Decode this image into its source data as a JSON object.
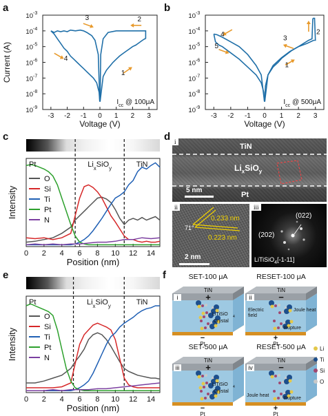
{
  "chart_data": [
    {
      "panel": "a",
      "type": "line",
      "xlabel": "Voltage (V)",
      "ylabel": "Current (A)",
      "xlim": [
        -3.5,
        3.5
      ],
      "xticks": [
        -3,
        -2,
        -1,
        0,
        1,
        2,
        3
      ],
      "ylim": [
        -9,
        -3
      ],
      "yscale": "log",
      "yticklabels": [
        "10",
        "10",
        "10",
        "10",
        "10",
        "10",
        "10"
      ],
      "ytickexp": [
        "-9",
        "-8",
        "-7",
        "-6",
        "-5",
        "-4",
        "-3"
      ],
      "annotation_main": "I",
      "annotation_sub": "cc",
      "annotation_rest": " @ 100μA",
      "arrows": [
        "1",
        "2",
        "3",
        "4"
      ],
      "series": [
        {
          "x": [
            0.01,
            0.2,
            0.4,
            0.6,
            0.8,
            1.0,
            1.2,
            1.4,
            1.6,
            1.8,
            2.0,
            2.2,
            2.4,
            2.6,
            2.75,
            2.8
          ],
          "y": [
            -8.5,
            -6.9,
            -6.5,
            -6.25,
            -6.0,
            -5.8,
            -5.6,
            -5.45,
            -5.3,
            -5.15,
            -5.0,
            -4.9,
            -4.75,
            -4.6,
            -4.5,
            -4.5
          ]
        },
        {
          "x": [
            2.8,
            2.8,
            2.5,
            2.0,
            1.5,
            1.0,
            0.5,
            0.2,
            0.05,
            0.01
          ],
          "y": [
            -4.5,
            -4.0,
            -4.0,
            -4.0,
            -4.0,
            -4.0,
            -4.1,
            -4.5,
            -5.5,
            -8.5
          ]
        },
        {
          "x": [
            -0.01,
            -0.1,
            -0.3,
            -0.5,
            -0.8,
            -1.0,
            -1.2,
            -1.5,
            -1.8,
            -2.0,
            -2.2,
            -2.4,
            -2.6,
            -2.8,
            -3.0
          ],
          "y": [
            -8.5,
            -5.5,
            -4.6,
            -4.3,
            -4.1,
            -4.0,
            -3.95,
            -4.0,
            -3.95,
            -4.05,
            -4.0,
            -4.05,
            -4.0,
            -4.1,
            -4.0
          ]
        },
        {
          "x": [
            -3.0,
            -2.8,
            -2.6,
            -2.4,
            -2.2,
            -2.0,
            -1.8,
            -1.6,
            -1.4,
            -1.2,
            -1.0,
            -0.8,
            -0.6,
            -0.4,
            -0.2,
            -0.05,
            -0.01
          ],
          "y": [
            -4.0,
            -4.2,
            -4.5,
            -4.8,
            -5.1,
            -5.3,
            -5.6,
            -5.8,
            -6.0,
            -6.2,
            -6.4,
            -6.6,
            -6.8,
            -7.0,
            -7.3,
            -7.9,
            -8.5
          ]
        }
      ]
    },
    {
      "panel": "b",
      "type": "line",
      "xlabel": "Voltage (V)",
      "ylabel": "",
      "xlim": [
        -3.5,
        3.5
      ],
      "xticks": [
        -3,
        -2,
        -1,
        0,
        1,
        2,
        3
      ],
      "ylim": [
        -9,
        -3
      ],
      "yscale": "log",
      "yticklabels": [
        "10",
        "10",
        "10",
        "10",
        "10",
        "10",
        "10"
      ],
      "ytickexp": [
        "-9",
        "-8",
        "-7",
        "-6",
        "-5",
        "-4",
        "-3"
      ],
      "annotation_main": "I",
      "annotation_sub": "cc",
      "annotation_rest": " @ 500μA",
      "arrows": [
        "1",
        "2",
        "3",
        "4",
        "5"
      ],
      "series": [
        {
          "x": [
            0.01,
            0.2,
            0.5,
            0.8,
            1.0,
            1.3,
            1.6,
            2.0,
            2.3,
            2.6,
            2.8,
            2.85
          ],
          "y": [
            -8.5,
            -6.8,
            -6.3,
            -6.0,
            -5.75,
            -5.5,
            -5.25,
            -5.0,
            -4.8,
            -4.6,
            -4.5,
            -3.2
          ]
        },
        {
          "x": [
            2.85,
            2.95,
            3.0,
            2.9
          ],
          "y": [
            -3.2,
            -3.2,
            -4.6,
            -4.6
          ]
        },
        {
          "x": [
            2.9,
            2.5,
            2.0,
            1.5,
            1.0,
            0.5,
            0.2,
            0.05,
            0.01
          ],
          "y": [
            -4.6,
            -4.8,
            -5.0,
            -5.3,
            -5.7,
            -6.2,
            -6.8,
            -7.5,
            -8.5
          ]
        },
        {
          "x": [
            -0.01,
            -0.2,
            -0.5,
            -1.0,
            -1.5,
            -2.0,
            -2.5,
            -2.8,
            -3.0
          ],
          "y": [
            -8.5,
            -6.8,
            -6.2,
            -5.5,
            -5.0,
            -4.7,
            -4.4,
            -4.25,
            -4.2
          ]
        },
        {
          "x": [
            -3.0,
            -2.9,
            -2.7,
            -2.5,
            -2.0,
            -1.5,
            -1.0,
            -0.5,
            -0.2,
            -0.05,
            -0.01
          ],
          "y": [
            -4.2,
            -4.7,
            -4.9,
            -5.0,
            -5.4,
            -5.8,
            -6.3,
            -6.8,
            -7.3,
            -7.9,
            -8.5
          ]
        }
      ]
    },
    {
      "panel": "c",
      "type": "line",
      "xlabel": "Position (nm)",
      "ylabel": "Intensity",
      "xlim": [
        0,
        15
      ],
      "xticks": [
        0,
        2,
        4,
        6,
        8,
        10,
        12,
        14
      ],
      "ylim": [
        0,
        1
      ],
      "regions": [
        "Pt",
        "Li",
        "x",
        "SiO",
        "y",
        "TiN"
      ],
      "vlines": [
        5.5,
        11.0
      ],
      "series": [
        {
          "name": "O",
          "color": "#555555",
          "x": [
            0,
            1,
            2,
            3,
            4,
            5,
            5.5,
            6,
            6.5,
            7,
            7.5,
            8,
            8.5,
            9,
            9.5,
            10,
            10.5,
            11,
            11.5,
            12,
            12.5,
            13,
            13.5,
            14,
            14.5,
            15
          ],
          "y": [
            0.05,
            0.06,
            0.08,
            0.1,
            0.15,
            0.22,
            0.3,
            0.35,
            0.4,
            0.45,
            0.5,
            0.55,
            0.56,
            0.54,
            0.5,
            0.42,
            0.32,
            0.25,
            0.3,
            0.32,
            0.3,
            0.33,
            0.3,
            0.32,
            0.34,
            0.3
          ]
        },
        {
          "name": "Si",
          "color": "#d62728",
          "x": [
            0,
            1,
            2,
            3,
            4,
            5,
            5.5,
            6,
            6.5,
            7,
            7.5,
            8,
            8.5,
            9,
            9.5,
            10,
            10.5,
            11,
            11.5,
            12,
            12.5,
            13,
            13.5,
            14,
            14.5,
            15
          ],
          "y": [
            0.1,
            0.09,
            0.1,
            0.08,
            0.1,
            0.15,
            0.35,
            0.55,
            0.68,
            0.7,
            0.67,
            0.62,
            0.55,
            0.45,
            0.35,
            0.28,
            0.2,
            0.12,
            0.08,
            0.08,
            0.06,
            0.05,
            0.06,
            0.05,
            0.05,
            0.06
          ]
        },
        {
          "name": "Ti",
          "color": "#1f5fb4",
          "x": [
            0,
            1,
            2,
            3,
            4,
            5,
            5.5,
            6,
            6.5,
            7,
            7.5,
            8,
            8.5,
            9,
            9.5,
            10,
            10.5,
            11,
            11.5,
            12,
            12.5,
            13,
            13.5,
            14,
            14.5,
            15
          ],
          "y": [
            0.02,
            0.02,
            0.02,
            0.02,
            0.02,
            0.02,
            0.03,
            0.05,
            0.08,
            0.12,
            0.18,
            0.25,
            0.32,
            0.4,
            0.48,
            0.55,
            0.58,
            0.62,
            0.7,
            0.75,
            0.85,
            0.9,
            0.88,
            0.92,
            0.95,
            0.9
          ]
        },
        {
          "name": "Pt",
          "color": "#2ca02c",
          "x": [
            0,
            0.5,
            1,
            1.5,
            2,
            2.5,
            3,
            3.5,
            4,
            4.5,
            5,
            5.5,
            6,
            6.5,
            7,
            7.5,
            8,
            9,
            10,
            11,
            12,
            13,
            14,
            15
          ],
          "y": [
            0.92,
            0.93,
            0.92,
            0.9,
            0.88,
            0.85,
            0.8,
            0.7,
            0.55,
            0.4,
            0.25,
            0.12,
            0.05,
            0.03,
            0.02,
            0.02,
            0.02,
            0.02,
            0.02,
            0.02,
            0.02,
            0.02,
            0.02,
            0.02
          ]
        },
        {
          "name": "N",
          "color": "#7b3fa0",
          "x": [
            0,
            1,
            2,
            3,
            4,
            5,
            6,
            7,
            8,
            9,
            10,
            11,
            12,
            13,
            14,
            15
          ],
          "y": [
            0.02,
            0.03,
            0.02,
            0.03,
            0.02,
            0.03,
            0.03,
            0.04,
            0.05,
            0.05,
            0.06,
            0.08,
            0.08,
            0.1,
            0.09,
            0.1
          ]
        }
      ]
    },
    {
      "panel": "e",
      "type": "line",
      "xlabel": "Position (nm)",
      "ylabel": "Intensity",
      "xlim": [
        0,
        15
      ],
      "xticks": [
        0,
        2,
        4,
        6,
        8,
        10,
        12,
        14
      ],
      "ylim": [
        0,
        1
      ],
      "regions": [
        "Pt",
        "Li",
        "x",
        "SiO",
        "y",
        "TiN"
      ],
      "vlines": [
        5.3,
        11.0
      ],
      "series": [
        {
          "name": "O",
          "color": "#555555",
          "x": [
            0,
            1,
            2,
            3,
            4,
            5,
            5.5,
            6,
            6.5,
            7,
            7.5,
            8,
            8.5,
            9,
            9.5,
            10,
            10.5,
            11,
            11.5,
            12,
            12.5,
            13,
            13.5,
            14,
            14.5,
            15
          ],
          "y": [
            0.1,
            0.1,
            0.12,
            0.15,
            0.18,
            0.25,
            0.32,
            0.38,
            0.45,
            0.55,
            0.6,
            0.62,
            0.6,
            0.55,
            0.48,
            0.4,
            0.32,
            0.25,
            0.22,
            0.2,
            0.18,
            0.17,
            0.16,
            0.15,
            0.15,
            0.14
          ]
        },
        {
          "name": "Si",
          "color": "#d62728",
          "x": [
            0,
            1,
            2,
            3,
            4,
            5,
            5.5,
            6,
            6.5,
            7,
            7.5,
            8,
            8.5,
            9,
            9.5,
            10,
            10.5,
            11,
            11.5,
            12,
            12.5,
            13,
            13.5,
            14,
            14.5,
            15
          ],
          "y": [
            0.05,
            0.05,
            0.05,
            0.05,
            0.06,
            0.1,
            0.3,
            0.5,
            0.6,
            0.65,
            0.7,
            0.72,
            0.7,
            0.68,
            0.65,
            0.55,
            0.35,
            0.15,
            0.08,
            0.06,
            0.05,
            0.05,
            0.05,
            0.05,
            0.05,
            0.05
          ]
        },
        {
          "name": "Ti",
          "color": "#1f5fb4",
          "x": [
            0,
            1,
            2,
            3,
            4,
            5,
            5.5,
            6,
            6.5,
            7,
            7.5,
            8,
            8.5,
            9,
            9.5,
            10,
            10.5,
            11,
            11.5,
            12,
            12.5,
            13,
            13.5,
            14,
            14.5,
            15
          ],
          "y": [
            0.02,
            0.02,
            0.02,
            0.02,
            0.02,
            0.02,
            0.03,
            0.05,
            0.08,
            0.12,
            0.2,
            0.3,
            0.4,
            0.5,
            0.58,
            0.62,
            0.68,
            0.72,
            0.75,
            0.78,
            0.82,
            0.85,
            0.87,
            0.88,
            0.9,
            0.9
          ]
        },
        {
          "name": "Pt",
          "color": "#2ca02c",
          "x": [
            0,
            0.5,
            1,
            1.5,
            2,
            2.5,
            3,
            3.5,
            4,
            4.5,
            5,
            5.5,
            6,
            6.5,
            7,
            8,
            9,
            10,
            11,
            12,
            13,
            14,
            15
          ],
          "y": [
            0.9,
            0.92,
            0.9,
            0.88,
            0.86,
            0.84,
            0.8,
            0.65,
            0.45,
            0.25,
            0.12,
            0.05,
            0.03,
            0.02,
            0.02,
            0.02,
            0.02,
            0.02,
            0.02,
            0.02,
            0.02,
            0.02,
            0.02
          ]
        },
        {
          "name": "N",
          "color": "#7b3fa0",
          "x": [
            0,
            1,
            2,
            3,
            4,
            5,
            6,
            7,
            8,
            9,
            10,
            11,
            12,
            13,
            14,
            15
          ],
          "y": [
            0.02,
            0.02,
            0.02,
            0.03,
            0.02,
            0.03,
            0.03,
            0.03,
            0.04,
            0.04,
            0.05,
            0.06,
            0.07,
            0.08,
            0.09,
            0.1
          ]
        }
      ]
    }
  ],
  "panels": {
    "a": "a",
    "b": "b",
    "c": "c",
    "d": "d",
    "e": "e",
    "f": "f"
  },
  "tem": {
    "top_label": "TiN",
    "mid_label_main": "Li",
    "mid_label_sub_x": "x",
    "mid_label_mid": "SiO",
    "mid_label_sub_y": "y",
    "bottom_label": "Pt",
    "scale_top": "5 nm",
    "roman_i": "i",
    "roman_ii": "ii",
    "roman_iii": "iii",
    "angle": "71°",
    "d1": "0.233 nm",
    "d2": "0.223 nm",
    "scale_ii": "2 nm",
    "fft_022": "(022)",
    "fft_202": "(202)",
    "zone": "LiTiSiO",
    "zone_sub": "4",
    "zone_rest": "[-1-11]"
  },
  "schematic": {
    "titles": [
      "SET-100 μA",
      "RESET-100 μA",
      "SET-500 μA",
      "RESET-500 μA"
    ],
    "romans": [
      "i",
      "ii",
      "iii",
      "iv"
    ],
    "tin": "TiN",
    "pt": "Pt",
    "plus": "+",
    "minus": "−",
    "crystal_main": "LiTiSiO",
    "crystal_sub": "4",
    "crystal_word": "Crystal",
    "electric_field": "Electric\nfield",
    "joule_heat": "Joule heat",
    "rupture": "Rupture",
    "legend": [
      {
        "symbol": "Li",
        "color": "#e3c84a"
      },
      {
        "symbol": "Ti",
        "color": "#1d4f8c"
      },
      {
        "symbol": "Si",
        "color": "#a04870"
      },
      {
        "symbol": "O",
        "color": "#c8c8c8"
      }
    ],
    "colors": {
      "top_gray": "#9aa0a6",
      "mid_blue": "#9ec9e2",
      "bottom_orange": "#e8a33b"
    }
  }
}
